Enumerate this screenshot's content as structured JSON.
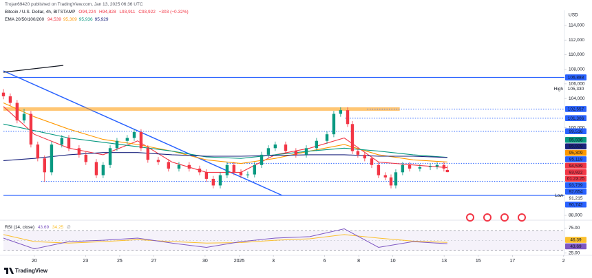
{
  "header": {
    "publisher": "Trojan69420 published on TradingView.com, Jan 13, 2025 06:36 UTC"
  },
  "chart_data": {
    "type": "candlestick",
    "symbol": "Bitcoin / U.S. Dollar, 4h, BITSTAMP",
    "ohlc_text": [
      "O94,224",
      "H94,828",
      "L93,911",
      "C93,922",
      "−303 (−0.32%)"
    ],
    "indicator_title": "EMA 20/50/100/200",
    "currency": "USD",
    "x": [
      -1.81,
      -1.41,
      -1.01,
      -0.6,
      -0.2,
      0.2,
      0.6,
      1.01,
      1.61,
      2.02,
      2.62,
      3.02,
      3.63,
      4.03,
      4.44,
      4.84,
      5.44,
      5.85,
      6.25,
      6.65,
      7.26,
      7.86,
      8.47,
      9.07,
      9.68,
      10.08,
      10.48,
      10.89,
      11.29,
      11.69,
      12.1,
      12.5,
      12.9,
      13.31,
      13.71,
      14.11,
      14.72,
      15.32,
      15.93,
      16.53,
      17.14,
      17.54,
      17.94,
      18.35,
      18.63,
      18.95,
      19.35,
      19.76,
      20.16,
      20.56,
      20.89,
      21.17,
      21.57,
      21.98,
      22.58,
      23.19,
      23.59,
      23.99,
      24.19
    ],
    "open": [
      104800,
      104300,
      103400,
      101000,
      101900,
      97700,
      95800,
      93900,
      97700,
      98600,
      97200,
      96300,
      95300,
      93500,
      94900,
      97200,
      98200,
      98600,
      99400,
      97200,
      95600,
      95300,
      94400,
      94900,
      94400,
      93900,
      93000,
      92100,
      93500,
      94900,
      93900,
      93500,
      93600,
      94900,
      96300,
      97200,
      97700,
      96800,
      96300,
      97200,
      98200,
      99100,
      101900,
      102400,
      100500,
      96800,
      96300,
      95800,
      94900,
      93500,
      93200,
      92100,
      93900,
      94900,
      94400,
      94600,
      94700,
      94900,
      94224
    ],
    "high": [
      105300,
      104700,
      103800,
      102600,
      102300,
      98100,
      96200,
      98100,
      99000,
      99000,
      97600,
      96700,
      95700,
      95300,
      97600,
      98600,
      99000,
      99800,
      99800,
      97600,
      96000,
      95700,
      95300,
      95300,
      94800,
      94300,
      93400,
      93900,
      95300,
      95300,
      94300,
      94000,
      95300,
      96700,
      97600,
      98100,
      98100,
      97200,
      97600,
      98600,
      99500,
      102300,
      102800,
      102800,
      100900,
      97200,
      96700,
      96200,
      95300,
      93900,
      93600,
      94300,
      95300,
      95300,
      95000,
      95100,
      95300,
      95300,
      94828
    ],
    "low": [
      103900,
      103000,
      100600,
      100600,
      97300,
      95400,
      92600,
      93500,
      97300,
      96800,
      95900,
      94900,
      93100,
      93100,
      94500,
      96800,
      97800,
      98200,
      96800,
      95200,
      94900,
      94000,
      94000,
      94000,
      93500,
      92600,
      91700,
      91700,
      93100,
      93500,
      93100,
      93100,
      93200,
      94500,
      95900,
      96800,
      96400,
      95900,
      95900,
      96800,
      97800,
      98700,
      101500,
      100100,
      96400,
      95900,
      95400,
      94500,
      93100,
      92800,
      91700,
      91700,
      93500,
      94000,
      94000,
      94200,
      94300,
      94000,
      93911
    ],
    "close": [
      104300,
      103400,
      101000,
      101900,
      97700,
      95800,
      93900,
      97700,
      98600,
      97200,
      96300,
      95300,
      93500,
      94900,
      97200,
      98200,
      98600,
      99400,
      97200,
      95600,
      95300,
      94400,
      94900,
      94400,
      93900,
      93000,
      92100,
      93500,
      94900,
      93900,
      93500,
      93600,
      94900,
      96300,
      97200,
      97700,
      96800,
      96300,
      97200,
      98200,
      99100,
      101900,
      102400,
      100500,
      96800,
      96300,
      95800,
      94900,
      93500,
      93200,
      92100,
      93900,
      94900,
      94400,
      94600,
      94700,
      94900,
      94400,
      93922
    ],
    "up_color": "#089981",
    "down_color": "#f23645",
    "xlim": [
      -1.81,
      31.05
    ],
    "xticks": [
      {
        "value": 0,
        "label": "20"
      },
      {
        "value": 3,
        "label": "23"
      },
      {
        "value": 5,
        "label": "25"
      },
      {
        "value": 7,
        "label": "27"
      },
      {
        "value": 10,
        "label": "30"
      },
      {
        "value": 12,
        "label": "2025"
      },
      {
        "value": 14,
        "label": "3"
      },
      {
        "value": 17,
        "label": "6"
      },
      {
        "value": 19,
        "label": "8"
      },
      {
        "value": 21,
        "label": "10"
      },
      {
        "value": 24,
        "label": "13"
      },
      {
        "value": 26,
        "label": "15"
      },
      {
        "value": 28,
        "label": "17"
      },
      {
        "value": 31,
        "label": "2"
      }
    ],
    "ylim": [
      87340,
      116070
    ],
    "yticks": [
      {
        "value": 114000,
        "label": "114,000"
      },
      {
        "value": 112000,
        "label": "112,000"
      },
      {
        "value": 110000,
        "label": "110,000"
      },
      {
        "value": 108000,
        "label": "108,000"
      },
      {
        "value": 106000,
        "label": "106,000"
      },
      {
        "value": 104000,
        "label": "104,000"
      },
      {
        "value": 100000,
        "label": "100,000"
      },
      {
        "value": 88000,
        "label": "88,000"
      }
    ],
    "grid": false,
    "series": [
      {
        "color": "#f23645",
        "last_label": "94,539",
        "x": [
          -1.81,
          0,
          2.02,
          4.03,
          6.05,
          8.06,
          10.08,
          12.1,
          14.11,
          16.13,
          18.15,
          20.16,
          22.18,
          24.19
        ],
        "values": [
          102900,
          99100,
          97200,
          96300,
          98200,
          95300,
          93900,
          93900,
          96300,
          97200,
          98600,
          95300,
          94900,
          94539
        ]
      },
      {
        "color": "#ff9800",
        "last_label": "95,309",
        "x": [
          -1.81,
          0,
          2.02,
          4.03,
          6.05,
          8.06,
          10.08,
          12.1,
          14.11,
          16.13,
          18.15,
          20.16,
          22.18,
          24.19
        ],
        "values": [
          103400,
          101500,
          99800,
          98400,
          97700,
          96800,
          95600,
          95100,
          95800,
          96800,
          97700,
          96300,
          95600,
          95309
        ]
      },
      {
        "color": "#089981",
        "last_label": "95,936",
        "x": [
          -1.81,
          0,
          2.02,
          4.03,
          6.05,
          8.06,
          10.08,
          12.1,
          14.11,
          16.13,
          18.15,
          20.16,
          22.18,
          24.19
        ],
        "values": [
          100500,
          99600,
          98600,
          98000,
          97400,
          96800,
          96000,
          95800,
          96300,
          96800,
          97200,
          96800,
          96300,
          95936
        ]
      },
      {
        "color": "#1a237e",
        "last_label": "95,929",
        "x": [
          -1.81,
          0,
          2.02,
          4.03,
          6.05,
          8.06,
          10.08,
          12.1,
          14.11,
          16.13,
          18.15,
          20.16,
          22.18,
          24.19
        ],
        "values": [
          95500,
          95800,
          96300,
          96600,
          96600,
          96300,
          96100,
          96100,
          96200,
          96300,
          96300,
          96100,
          96100,
          95929
        ]
      }
    ],
    "levels": [
      {
        "value": 106888,
        "color": "#2962ff",
        "style": "solid",
        "start": -1.81
      },
      {
        "value": 102557,
        "color": "#ff9800",
        "style": "zone",
        "start": -1.81,
        "end": 21.4
      },
      {
        "value": 102557,
        "color": "#2962ff",
        "style": "dotted",
        "start": 19.5
      },
      {
        "value": 101306,
        "color": "#2962ff",
        "style": "dotted",
        "start": 18.2
      },
      {
        "value": 99516,
        "color": "#2962ff",
        "style": "dotted",
        "start": -1.81
      },
      {
        "value": 95119,
        "color": "#2962ff",
        "style": "dotted",
        "start": 11.3
      },
      {
        "value": 92654,
        "color": "#2962ff",
        "style": "dotted",
        "start": 0.4
      },
      {
        "value": 90742,
        "color": "#2962ff",
        "style": "solid",
        "start": -1.81
      }
    ],
    "axis_labels": [
      {
        "value": 106888,
        "label": "106,888",
        "color": "#2962ff"
      },
      {
        "value": 102557,
        "label": "102,557",
        "color": "#2962ff"
      },
      {
        "value": 101306,
        "label": "101,306",
        "color": "#2962ff"
      },
      {
        "value": 99516,
        "label": "99,516",
        "color": "#2962ff"
      },
      {
        "value": 95936,
        "label": "95,936",
        "color": "#089981"
      },
      {
        "value": 95929,
        "label": "95,929",
        "color": "#1a237e"
      },
      {
        "value": 95309,
        "label": "95,309",
        "color": "#ff9800"
      },
      {
        "value": 95119,
        "label": "95,119",
        "color": "#2962ff"
      },
      {
        "value": 94539,
        "label": "94,539",
        "color": "#f23645"
      },
      {
        "value": 93922,
        "label": "93,922",
        "color": "#f23645"
      },
      {
        "value": 93739,
        "label": "93,739",
        "color": "#2962ff"
      },
      {
        "value": 92654,
        "label": "92,654",
        "color": "#2962ff"
      },
      {
        "value": 90742,
        "label": "90,742",
        "color": "#2962ff"
      }
    ],
    "countdown": "01:23:25",
    "session_high": {
      "text": "High",
      "value": 105330,
      "label": "105,330"
    },
    "session_low": {
      "text": "Low",
      "value": 90742
    },
    "extra_label": {
      "value": 91215,
      "label": "91,215"
    },
    "rsi": {
      "title": "RSI (14, close)",
      "readings": [
        "43.69",
        "34.25"
      ],
      "symbol": "∅",
      "x": [
        -1.81,
        0,
        2.02,
        4.03,
        6.05,
        8.06,
        10.08,
        12.1,
        14.11,
        16.13,
        18.15,
        20.16,
        22.18,
        24.19
      ],
      "values": [
        55,
        33.6,
        48,
        50.7,
        55,
        45,
        36.4,
        48,
        55,
        57.9,
        73.6,
        36.4,
        48,
        43.69
      ],
      "ma_values": [
        62,
        48,
        45,
        48,
        52,
        48,
        45,
        46,
        50.7,
        53.6,
        62,
        55,
        49,
        46.39
      ],
      "color": "#7e57c2",
      "ma_color": "#fbc02d",
      "ylim": [
        22,
        88
      ],
      "yticks": [
        {
          "value": 75,
          "label": "75.00"
        },
        {
          "value": 25,
          "label": "25.00"
        }
      ],
      "band": [
        30,
        70
      ],
      "midline": 50,
      "labels": [
        {
          "value": 46.39,
          "label": "46.39",
          "color": "#fbc02d"
        },
        {
          "value": 43.69,
          "label": "43.69",
          "color": "#7e57c2"
        }
      ]
    }
  },
  "footer": {
    "brand": "TradingView"
  }
}
